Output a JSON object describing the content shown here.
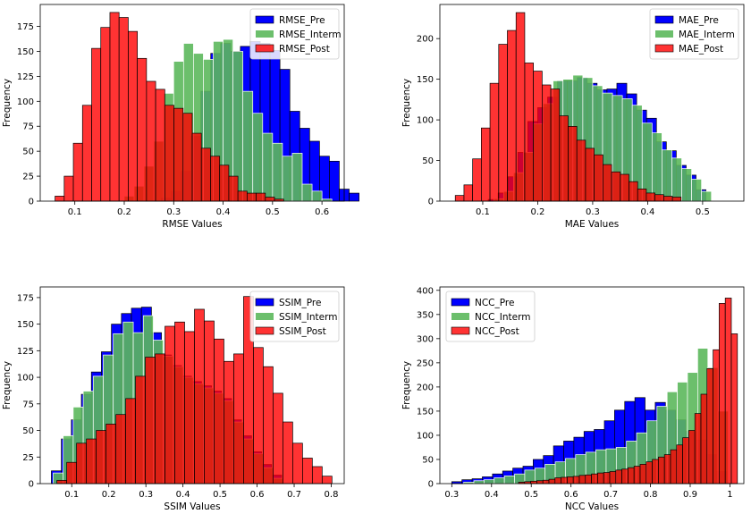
{
  "colors": {
    "pre": "#0000ff",
    "interm": "#5cb85c",
    "post": "#ff0000"
  },
  "chart_data": [
    {
      "type": "histogram",
      "xlabel": "RMSE Values",
      "ylabel": "Frequency",
      "xlim": [
        0.03,
        0.645
      ],
      "ylim": [
        0,
        197
      ],
      "xticks": [
        0.1,
        0.2,
        0.3,
        0.4,
        0.5,
        0.6
      ],
      "yticks": [
        0,
        25,
        50,
        75,
        100,
        125,
        150,
        175
      ],
      "legend_position": "top-right",
      "series": [
        {
          "name": "RMSE_Pre",
          "key": "pre",
          "start": 0.275,
          "width": 0.02,
          "values": [
            3,
            10,
            30,
            65,
            110,
            148,
            158,
            150,
            155,
            160,
            158,
            151,
            132,
            90,
            73,
            60,
            45,
            40,
            12,
            8
          ]
        },
        {
          "name": "RMSE_Interm",
          "key": "interm",
          "start": 0.2,
          "width": 0.02,
          "values": [
            5,
            15,
            35,
            60,
            108,
            140,
            158,
            148,
            142,
            160,
            162,
            150,
            110,
            88,
            68,
            58,
            45,
            48,
            17,
            10,
            2
          ]
        },
        {
          "name": "RMSE_Post",
          "key": "post",
          "start": 0.06,
          "width": 0.0185,
          "values": [
            5,
            25,
            58,
            96,
            153,
            174,
            189,
            184,
            170,
            143,
            120,
            112,
            96,
            93,
            88,
            68,
            53,
            45,
            36,
            25,
            10,
            8,
            8,
            4,
            2
          ]
        }
      ]
    },
    {
      "type": "histogram",
      "xlabel": "MAE Values",
      "ylabel": "Frequency",
      "xlim": [
        0.022,
        0.575
      ],
      "ylim": [
        0,
        242
      ],
      "xticks": [
        0.1,
        0.2,
        0.3,
        0.4,
        0.5
      ],
      "yticks": [
        0,
        50,
        100,
        150,
        200
      ],
      "legend_position": "top-right",
      "series": [
        {
          "name": "MAE_Pre",
          "key": "pre",
          "start": 0.11,
          "width": 0.018,
          "values": [
            2,
            10,
            30,
            60,
            98,
            115,
            128,
            148,
            148,
            152,
            145,
            137,
            138,
            145,
            132,
            112,
            102,
            73,
            62,
            44,
            32,
            14
          ]
        },
        {
          "name": "MAE_Interm",
          "key": "interm",
          "start": 0.12,
          "width": 0.018,
          "values": [
            3,
            12,
            35,
            60,
            95,
            120,
            148,
            150,
            155,
            152,
            142,
            133,
            130,
            126,
            118,
            96,
            84,
            63,
            53,
            40,
            27,
            12
          ]
        },
        {
          "name": "MAE_Post",
          "key": "post",
          "start": 0.05,
          "width": 0.0158,
          "values": [
            7,
            20,
            52,
            90,
            145,
            193,
            210,
            232,
            170,
            160,
            143,
            138,
            105,
            92,
            75,
            65,
            57,
            45,
            36,
            33,
            24,
            15,
            10,
            8,
            6,
            5
          ]
        }
      ]
    },
    {
      "type": "histogram",
      "xlabel": "SSIM Values",
      "ylabel": "Frequency",
      "xlim": [
        0.015,
        0.835
      ],
      "ylim": [
        0,
        185
      ],
      "xticks": [
        0.1,
        0.2,
        0.3,
        0.4,
        0.5,
        0.6,
        0.7,
        0.8
      ],
      "yticks": [
        0,
        25,
        50,
        75,
        100,
        125,
        150,
        175
      ],
      "legend_position": "top-right",
      "series": [
        {
          "name": "SSIM_Pre",
          "key": "pre",
          "start": 0.045,
          "width": 0.027,
          "values": [
            12,
            42,
            60,
            84,
            105,
            124,
            150,
            160,
            165,
            166,
            142,
            121,
            111,
            101,
            96,
            92,
            87,
            80,
            60,
            45,
            30,
            18,
            8
          ]
        },
        {
          "name": "SSIM_Interm",
          "key": "interm",
          "start": 0.05,
          "width": 0.027,
          "values": [
            10,
            45,
            72,
            87,
            101,
            121,
            141,
            152,
            142,
            158,
            135,
            120,
            110,
            100,
            94,
            90,
            85,
            78,
            58,
            42,
            28,
            15,
            5
          ]
        },
        {
          "name": "SSIM_Post",
          "key": "post",
          "start": 0.06,
          "width": 0.0265,
          "values": [
            3,
            20,
            38,
            42,
            50,
            56,
            65,
            80,
            101,
            119,
            122,
            148,
            152,
            143,
            164,
            153,
            136,
            115,
            122,
            176,
            128,
            110,
            85,
            58,
            38,
            24,
            16,
            7
          ]
        }
      ]
    },
    {
      "type": "histogram",
      "xlabel": "NCC Values",
      "ylabel": "Frequency",
      "xlim": [
        0.27,
        1.035
      ],
      "ylim": [
        0,
        407
      ],
      "xticks": [
        0.3,
        0.4,
        0.5,
        0.6,
        0.7,
        0.8,
        0.9,
        1.0
      ],
      "yticks": [
        0,
        50,
        100,
        150,
        200,
        250,
        300,
        350,
        400
      ],
      "legend_position": "top-left",
      "series": [
        {
          "name": "NCC_Pre",
          "key": "pre",
          "start": 0.3,
          "width": 0.0256,
          "values": [
            4,
            8,
            10,
            14,
            20,
            26,
            32,
            36,
            50,
            58,
            78,
            88,
            96,
            108,
            112,
            130,
            152,
            170,
            178,
            152,
            168,
            152,
            132,
            108,
            90,
            60,
            25
          ]
        },
        {
          "name": "NCC_Interm",
          "key": "interm",
          "start": 0.33,
          "width": 0.0256,
          "values": [
            3,
            6,
            8,
            12,
            16,
            20,
            28,
            32,
            40,
            45,
            52,
            60,
            65,
            70,
            72,
            75,
            88,
            105,
            130,
            160,
            190,
            210,
            230,
            280,
            240,
            150
          ]
        },
        {
          "name": "NCC_Post",
          "key": "post",
          "start": 0.468,
          "width": 0.0153,
          "values": [
            3,
            4,
            5,
            6,
            7,
            9,
            12,
            13,
            14,
            15,
            17,
            18,
            20,
            22,
            23,
            25,
            28,
            30,
            33,
            36,
            40,
            45,
            50,
            55,
            60,
            70,
            80,
            95,
            110,
            145,
            185,
            238,
            277,
            373,
            384,
            310
          ]
        }
      ]
    }
  ]
}
